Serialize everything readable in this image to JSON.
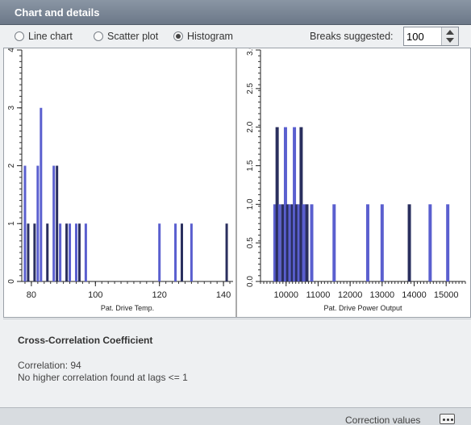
{
  "panel": {
    "title": "Chart and details"
  },
  "view_options": {
    "items": [
      {
        "label": "Line chart",
        "selected": false
      },
      {
        "label": "Scatter plot",
        "selected": false
      },
      {
        "label": "Histogram",
        "selected": true
      }
    ],
    "breaks_label": "Breaks suggested:",
    "breaks_value": "100"
  },
  "colors": {
    "bar_primary": "#5a5fcf",
    "bar_dark": "#2a2f5e",
    "accent": "#6c7888"
  },
  "chart_data": [
    {
      "type": "bar",
      "xlabel": "Pat. Drive Temp.",
      "xlim": [
        77,
        143
      ],
      "ylim": [
        0,
        4
      ],
      "x_ticks": [
        "80",
        "100",
        "120",
        "140"
      ],
      "x_tick_values": [
        80,
        100,
        120,
        140
      ],
      "y_ticks": [
        "0",
        "1",
        "2",
        "3",
        "4"
      ],
      "y_tick_values": [
        0,
        1,
        2,
        3,
        4
      ],
      "series": [
        {
          "x": [
            78,
            79,
            81,
            82,
            83,
            85,
            87,
            88,
            89,
            91,
            92,
            94,
            95,
            97,
            120,
            125,
            127,
            130,
            141
          ],
          "values": [
            2,
            1,
            1,
            2,
            3,
            1,
            2,
            2,
            1,
            1,
            1,
            1,
            1,
            1,
            1,
            1,
            1,
            1,
            1
          ],
          "dark": [
            false,
            true,
            true,
            false,
            false,
            true,
            false,
            true,
            false,
            true,
            false,
            false,
            true,
            false,
            false,
            false,
            true,
            false,
            true
          ]
        }
      ]
    },
    {
      "type": "bar",
      "xlabel": "Pat. Drive Power Output",
      "xlim": [
        9200,
        15600
      ],
      "ylim": [
        0,
        3
      ],
      "x_ticks": [
        "10000",
        "11000",
        "12000",
        "13000",
        "14000",
        "15000"
      ],
      "x_tick_values": [
        10000,
        11000,
        12000,
        13000,
        14000,
        15000
      ],
      "y_ticks": [
        "0.0",
        "0.5",
        "1.0",
        "1.5",
        "2.0",
        "2.5",
        "3.0"
      ],
      "y_tick_values": [
        0,
        0.5,
        1,
        1.5,
        2,
        2.5,
        3
      ],
      "series": [
        {
          "x": [
            9650,
            9720,
            9800,
            9900,
            9980,
            10050,
            10120,
            10200,
            10260,
            10330,
            10400,
            10470,
            10550,
            10650,
            10800,
            11500,
            12550,
            13000,
            13850,
            14500,
            15050
          ],
          "values": [
            1,
            2,
            1,
            1,
            2,
            1,
            1,
            1,
            2,
            1,
            1,
            2,
            1,
            1,
            1,
            1,
            1,
            1,
            1,
            1,
            1
          ],
          "dark": [
            false,
            true,
            false,
            true,
            false,
            true,
            false,
            true,
            false,
            true,
            false,
            true,
            false,
            true,
            false,
            false,
            false,
            false,
            true,
            false,
            false
          ]
        }
      ]
    }
  ],
  "details": {
    "heading": "Cross-Correlation Coefficient",
    "correlation_line": "Correlation: 94",
    "lag_line": "No higher correlation found at lags <= 1"
  },
  "footer": {
    "label": "Correction values",
    "more_icon": "ellipsis-icon"
  }
}
